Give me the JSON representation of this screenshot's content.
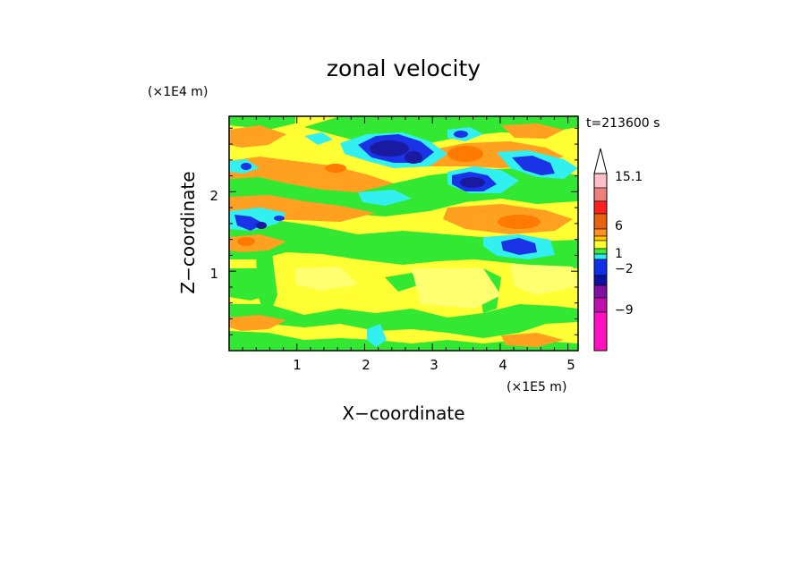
{
  "chart_data": {
    "type": "heatmap",
    "title": "zonal velocity",
    "xlabel": "X−coordinate",
    "ylabel": "Z−coordinate",
    "x_scale_label": "(×1E5 m)",
    "y_scale_label": "(×1E4 m)",
    "time_label": "t=213600 s",
    "xlim": [
      0,
      5.15
    ],
    "ylim": [
      0,
      2.95
    ],
    "x_ticks": [
      "1",
      "2",
      "3",
      "4",
      "5"
    ],
    "y_ticks": [
      "1",
      "2"
    ],
    "colorbar": {
      "labels": [
        "15.1",
        "6",
        "1",
        "−2",
        "−9"
      ],
      "colors": [
        "#ffc0c8",
        "#f08080",
        "#ff2020",
        "#e86010",
        "#ff9020",
        "#ffc800",
        "#ffff30",
        "#40e840",
        "#30e8f0",
        "#1030e8",
        "#1010a0",
        "#8010a0",
        "#c010b0",
        "#ff10c0"
      ],
      "extend": "max"
    },
    "field_colors": {
      "background": "#ffff33",
      "light_yellow": "#ffff66",
      "orange": "#ffa500",
      "green": "#33e833",
      "cyan": "#33f0f0",
      "blue": "#1a33e6",
      "navy": "#1a1aa0",
      "deep_orange": "#ff7f00"
    }
  }
}
